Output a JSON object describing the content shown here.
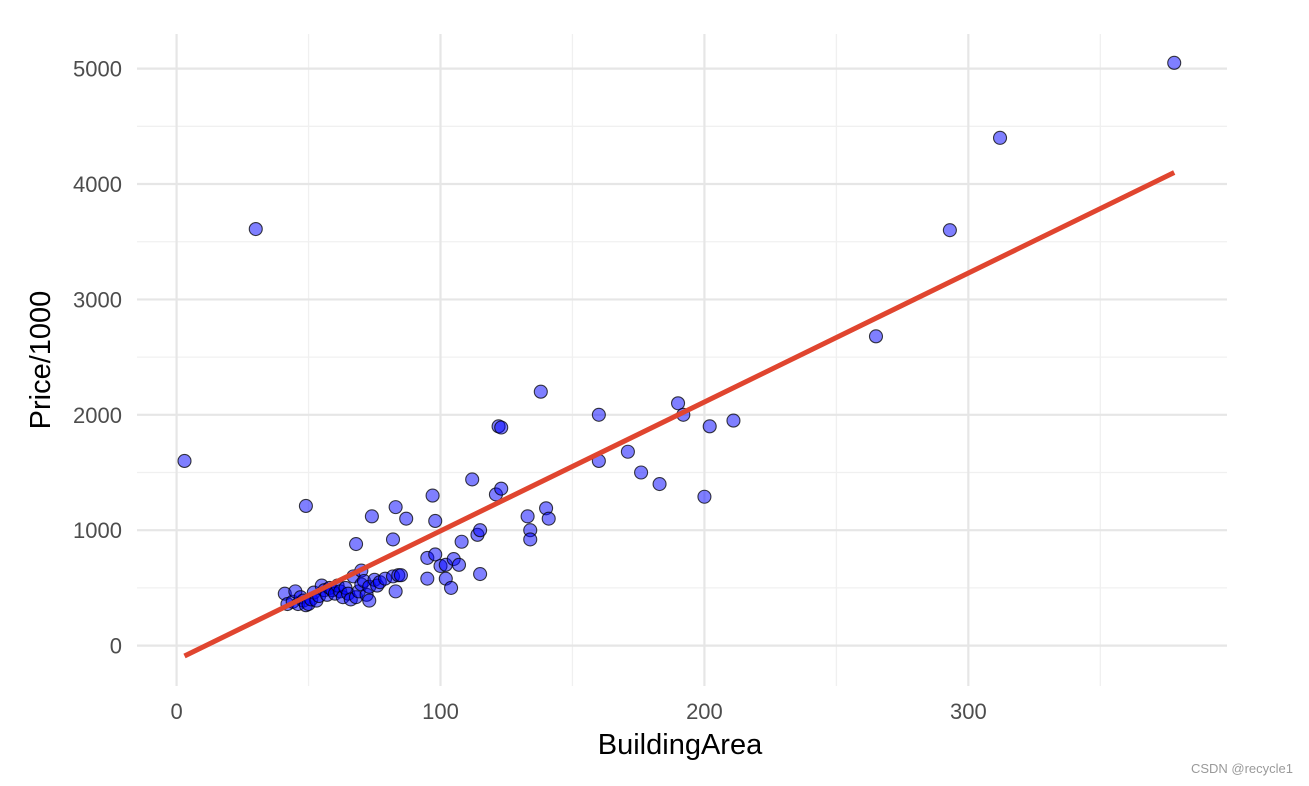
{
  "chart_data": {
    "type": "scatter",
    "title": "",
    "xlabel": "BuildingArea",
    "ylabel": "Price/1000",
    "xlim": [
      -15,
      398
    ],
    "ylim": [
      -350,
      5300
    ],
    "x_ticks": [
      0,
      100,
      200,
      300
    ],
    "y_ticks": [
      0,
      1000,
      2000,
      3000,
      4000,
      5000
    ],
    "x_minor_gridlines": [
      50,
      150,
      250,
      350
    ],
    "y_minor_gridlines": [
      500,
      1500,
      2500,
      3500,
      4500
    ],
    "grid": true,
    "legend": "none",
    "point_fill": "#0000ff",
    "point_opacity": 0.5,
    "point_stroke": "#000000",
    "trend_line_color": "#e0452f",
    "series": [
      {
        "values": [
          [
            3,
            1600
          ],
          [
            30,
            3610
          ],
          [
            49,
            1210
          ],
          [
            41,
            450
          ],
          [
            42,
            360
          ],
          [
            44,
            380
          ],
          [
            45,
            470
          ],
          [
            46,
            360
          ],
          [
            47,
            420
          ],
          [
            48,
            390
          ],
          [
            49,
            350
          ],
          [
            50,
            360
          ],
          [
            51,
            400
          ],
          [
            52,
            460
          ],
          [
            53,
            390
          ],
          [
            54,
            430
          ],
          [
            55,
            520
          ],
          [
            56,
            480
          ],
          [
            57,
            440
          ],
          [
            58,
            500
          ],
          [
            59,
            480
          ],
          [
            60,
            450
          ],
          [
            61,
            520
          ],
          [
            62,
            470
          ],
          [
            63,
            420
          ],
          [
            64,
            500
          ],
          [
            65,
            450
          ],
          [
            66,
            400
          ],
          [
            67,
            600
          ],
          [
            68,
            420
          ],
          [
            68,
            880
          ],
          [
            69,
            470
          ],
          [
            70,
            530
          ],
          [
            70,
            650
          ],
          [
            71,
            560
          ],
          [
            72,
            440
          ],
          [
            73,
            390
          ],
          [
            73,
            510
          ],
          [
            74,
            1120
          ],
          [
            75,
            570
          ],
          [
            76,
            520
          ],
          [
            77,
            550
          ],
          [
            79,
            580
          ],
          [
            82,
            920
          ],
          [
            82,
            600
          ],
          [
            83,
            470
          ],
          [
            83,
            1200
          ],
          [
            84,
            610
          ],
          [
            85,
            610
          ],
          [
            87,
            1100
          ],
          [
            95,
            760
          ],
          [
            95,
            580
          ],
          [
            97,
            1300
          ],
          [
            98,
            790
          ],
          [
            98,
            1080
          ],
          [
            100,
            690
          ],
          [
            102,
            580
          ],
          [
            102,
            700
          ],
          [
            104,
            500
          ],
          [
            105,
            750
          ],
          [
            107,
            700
          ],
          [
            108,
            900
          ],
          [
            112,
            1440
          ],
          [
            114,
            960
          ],
          [
            115,
            1000
          ],
          [
            115,
            620
          ],
          [
            121,
            1310
          ],
          [
            122,
            1900
          ],
          [
            123,
            1890
          ],
          [
            123,
            1360
          ],
          [
            133,
            1120
          ],
          [
            134,
            1000
          ],
          [
            134,
            920
          ],
          [
            138,
            2200
          ],
          [
            140,
            1190
          ],
          [
            141,
            1100
          ],
          [
            160,
            2000
          ],
          [
            160,
            1600
          ],
          [
            171,
            1680
          ],
          [
            176,
            1500
          ],
          [
            183,
            1400
          ],
          [
            190,
            2100
          ],
          [
            192,
            2000
          ],
          [
            200,
            1290
          ],
          [
            202,
            1900
          ],
          [
            211,
            1950
          ],
          [
            265,
            2680
          ],
          [
            293,
            3600
          ],
          [
            312,
            4400
          ],
          [
            378,
            5050
          ]
        ]
      }
    ],
    "trend_line": {
      "type": "linear",
      "x": [
        3,
        378
      ],
      "y": [
        -90,
        4100
      ]
    }
  },
  "watermark": "CSDN @recycle1"
}
